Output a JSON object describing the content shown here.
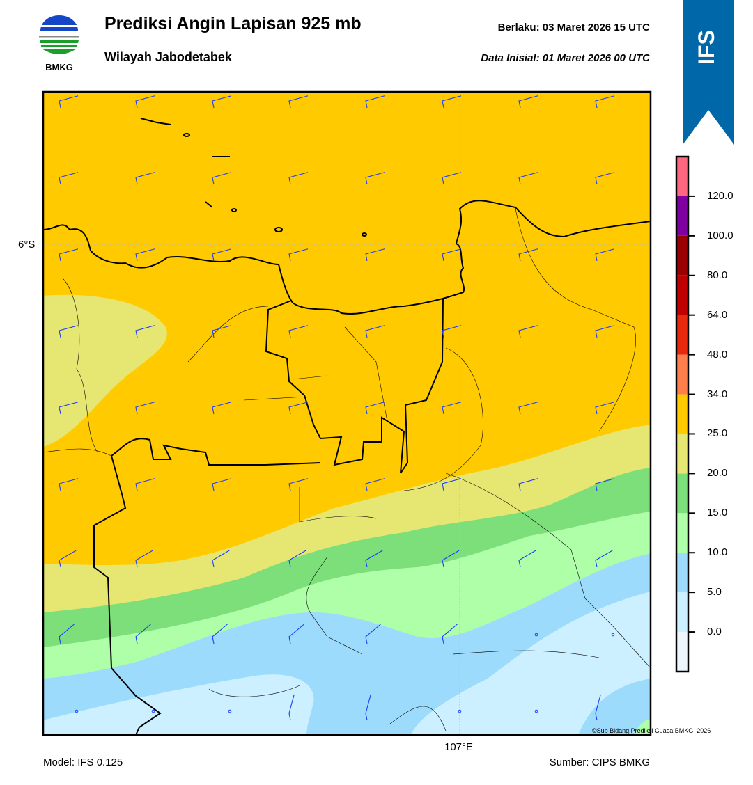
{
  "header": {
    "logo_text": "BMKG",
    "title": "Prediksi Angin Lapisan 925 mb",
    "subtitle": "Wilayah Jabodetabek",
    "valid_label": "Berlaku:  03 Maret 2026 15 UTC",
    "init_label": "Data Inisial:  01 Maret 2026 00 UTC",
    "model_badge": "IFS",
    "badge_color": "#0068a8"
  },
  "map": {
    "lat_label": "6°S",
    "lon_label": "107°E",
    "credit": "©Sub Bidang Prediksi Cuaca BMKG, 2026",
    "barb_color": "#1a3cff"
  },
  "colorbar": {
    "ticks": [
      "0.0",
      "5.0",
      "10.0",
      "15.0",
      "20.0",
      "25.0",
      "34.0",
      "48.0",
      "64.0",
      "80.0",
      "100.0",
      "120.0"
    ],
    "colors": [
      "#eef6fd",
      "#ccf0ff",
      "#9ddbfc",
      "#aeffa8",
      "#7ddf7a",
      "#e6e673",
      "#ffcb00",
      "#ff7f4c",
      "#e8290f",
      "#c00000",
      "#9a0000",
      "#7f00a0",
      "#ff6680"
    ]
  },
  "footer": {
    "model": "Model: IFS 0.125",
    "source": "Sumber: CIPS BMKG"
  }
}
